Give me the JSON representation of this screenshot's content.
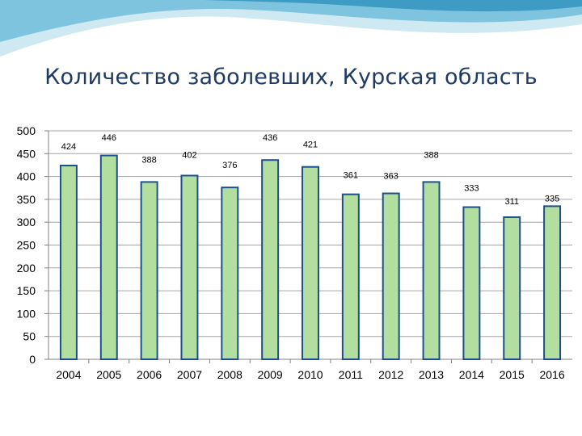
{
  "slide": {
    "title": "Количество заболевших, Курская область"
  },
  "colors": {
    "bar_fill": "#b2dea0",
    "bar_stroke": "#1f4e8c",
    "grid": "#a6a6a6",
    "wave_light": "#cfe9f3",
    "wave_mid": "#7fc4de",
    "wave_dark": "#3e9cc4"
  },
  "chart_data": {
    "type": "bar",
    "title": "",
    "xlabel": "",
    "ylabel": "",
    "categories": [
      "2004",
      "2005",
      "2006",
      "2007",
      "2008",
      "2009",
      "2010",
      "2011",
      "2012",
      "2013",
      "2014",
      "2015",
      "2016"
    ],
    "values": [
      424,
      446,
      388,
      402,
      376,
      436,
      421,
      361,
      363,
      388,
      333,
      311,
      335
    ],
    "data_labels": [
      "424",
      "446",
      "388",
      "402",
      "376",
      "436",
      "421",
      "361",
      "363",
      "388",
      "333",
      "311",
      "335"
    ],
    "yticks": [
      "0",
      "50",
      "100",
      "150",
      "200",
      "250",
      "300",
      "350",
      "400",
      "450",
      "500"
    ],
    "ylim": [
      0,
      500
    ],
    "grid": true,
    "legend": "none"
  }
}
